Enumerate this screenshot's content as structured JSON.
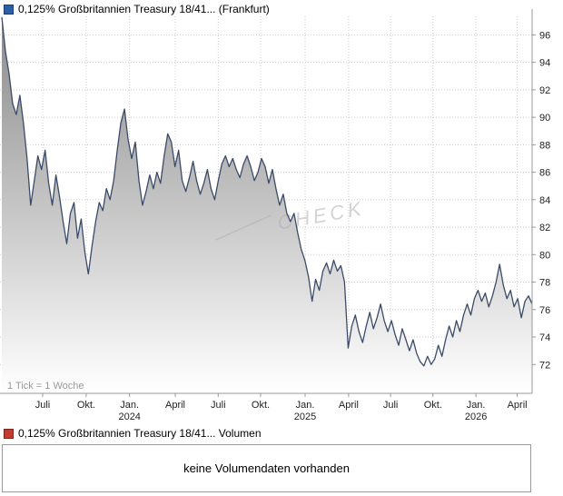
{
  "chart": {
    "title": "0,125% Großbritannien Treasury 18/41... (Frankfurt)",
    "tick_note": "1 Tick = 1 Woche",
    "watermark": "CHECK",
    "colors": {
      "line": "#3a4a68",
      "fill_top": "#8a8a8a",
      "fill_bottom": "#ffffff",
      "grid": "#cccccc",
      "axis": "#999999",
      "tick_text": "#222222",
      "watermark_color": "#b0b0b0",
      "legend_marker": "#2d5fa6",
      "legend_marker_border": "#173d77"
    }
  },
  "volume": {
    "title": "0,125% Großbritannien Treasury 18/41... Volumen",
    "message": "keine Volumendaten vorhanden",
    "marker_color": "#c23b2e",
    "marker_border": "#7c241c"
  },
  "chart_data": {
    "type": "area",
    "title": "0,125% Großbritannien Treasury 18/41... (Frankfurt)",
    "xlabel": "",
    "ylabel": "",
    "x_unit": "week",
    "tick_note": "1 Tick = 1 Woche",
    "grid": true,
    "legend_position": "none",
    "ylim": [
      69.9,
      97.35
    ],
    "yticks": [
      72,
      74,
      76,
      78,
      80,
      82,
      84,
      86,
      88,
      90,
      92,
      94,
      96
    ],
    "xticks": [
      {
        "f": 0.077,
        "label": "Juli"
      },
      {
        "f": 0.159,
        "label": "Okt."
      },
      {
        "f": 0.241,
        "label": "Jan.",
        "year": "2024"
      },
      {
        "f": 0.327,
        "label": "April"
      },
      {
        "f": 0.408,
        "label": "Juli"
      },
      {
        "f": 0.488,
        "label": "Okt."
      },
      {
        "f": 0.572,
        "label": "Jan.",
        "year": "2025"
      },
      {
        "f": 0.654,
        "label": "April"
      },
      {
        "f": 0.733,
        "label": "Juli"
      },
      {
        "f": 0.813,
        "label": "Okt."
      },
      {
        "f": 0.894,
        "label": "Jan.",
        "year": "2026"
      },
      {
        "f": 0.972,
        "label": "April"
      }
    ],
    "values": [
      97.3,
      94.8,
      93.2,
      91.0,
      90.2,
      91.6,
      89.6,
      87.0,
      83.6,
      85.4,
      87.2,
      86.2,
      87.6,
      85.2,
      83.6,
      85.8,
      84.2,
      82.4,
      80.8,
      83.0,
      83.8,
      81.2,
      82.6,
      80.2,
      78.6,
      80.6,
      82.4,
      83.8,
      83.2,
      84.8,
      84.0,
      85.4,
      87.6,
      89.6,
      90.6,
      88.4,
      87.0,
      88.2,
      85.4,
      83.6,
      84.6,
      85.8,
      84.8,
      86.0,
      85.2,
      87.2,
      88.8,
      88.2,
      86.4,
      87.6,
      85.4,
      84.6,
      85.6,
      86.8,
      85.4,
      84.4,
      85.2,
      86.2,
      84.8,
      84.0,
      85.4,
      86.6,
      87.2,
      86.4,
      87.0,
      86.2,
      85.6,
      86.6,
      87.2,
      86.4,
      85.4,
      86.0,
      87.0,
      86.4,
      85.2,
      86.2,
      84.8,
      83.6,
      84.4,
      83.0,
      82.4,
      83.0,
      81.6,
      80.4,
      79.6,
      78.4,
      76.6,
      78.2,
      77.4,
      78.8,
      79.4,
      78.6,
      79.6,
      78.8,
      79.2,
      78.0,
      73.2,
      74.8,
      75.6,
      74.4,
      73.6,
      74.8,
      75.8,
      74.6,
      75.4,
      76.4,
      75.2,
      74.4,
      75.2,
      74.2,
      73.4,
      74.6,
      73.8,
      73.0,
      73.8,
      72.8,
      72.2,
      71.9,
      72.6,
      72.0,
      72.4,
      73.4,
      72.6,
      73.8,
      74.8,
      74.0,
      75.2,
      74.4,
      75.6,
      76.4,
      75.6,
      76.8,
      77.4,
      76.6,
      77.2,
      76.2,
      77.0,
      78.0,
      79.3,
      77.8,
      76.8,
      77.4,
      76.2,
      76.8,
      75.4,
      76.6,
      77.0,
      76.4
    ]
  }
}
